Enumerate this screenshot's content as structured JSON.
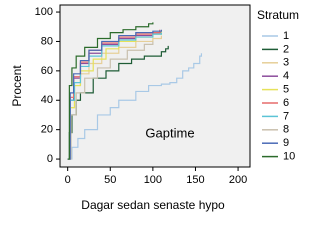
{
  "chart_data": {
    "type": "line",
    "step": "post",
    "xlabel": "Dagar sedan senaste hypo",
    "ylabel": "Procent",
    "annotation": "Gaptime",
    "legend_title": "Stratum",
    "legend": "right",
    "xlim": [
      -9,
      214
    ],
    "ylim": [
      -5.4,
      104.8
    ],
    "xticks": [
      0,
      50,
      100,
      150,
      200
    ],
    "yticks": [
      0,
      20,
      40,
      60,
      80,
      100
    ],
    "series": [
      {
        "name": "1",
        "color": "#a9c9e6",
        "x": [
          0,
          5,
          12,
          20,
          35,
          50,
          60,
          80,
          95,
          110,
          120,
          128,
          135,
          142,
          148,
          155,
          157
        ],
        "values": [
          0,
          8,
          14,
          20,
          30,
          35,
          40,
          46,
          50,
          51,
          52,
          55,
          60,
          62,
          65,
          70,
          72
        ]
      },
      {
        "name": "2",
        "color": "#1e5c36",
        "x": [
          0,
          2,
          5,
          10,
          15,
          30,
          45,
          60,
          75,
          90,
          110,
          115,
          118
        ],
        "values": [
          0,
          18,
          30,
          40,
          45,
          55,
          60,
          65,
          68,
          70,
          73,
          75,
          77
        ]
      },
      {
        "name": "3",
        "color": "#e6cf98",
        "x": [
          0,
          3,
          8,
          15,
          25,
          40,
          60,
          80,
          100,
          110
        ],
        "values": [
          0,
          35,
          50,
          58,
          65,
          72,
          76,
          80,
          82,
          84
        ]
      },
      {
        "name": "4",
        "color": "#8c4d9c",
        "x": [
          0,
          3,
          7,
          15,
          25,
          40,
          60,
          80,
          100,
          110
        ],
        "values": [
          0,
          40,
          55,
          65,
          72,
          78,
          82,
          84,
          86,
          87
        ]
      },
      {
        "name": "5",
        "color": "#e6e25a",
        "x": [
          0,
          3,
          8,
          15,
          30,
          45,
          60,
          80,
          100,
          110
        ],
        "values": [
          0,
          35,
          50,
          60,
          68,
          75,
          80,
          83,
          85,
          87
        ]
      },
      {
        "name": "6",
        "color": "#e66a6a",
        "x": [
          0,
          3,
          7,
          15,
          25,
          40,
          60,
          80,
          100,
          108
        ],
        "values": [
          0,
          42,
          56,
          66,
          74,
          79,
          83,
          85,
          86,
          88
        ]
      },
      {
        "name": "7",
        "color": "#5bc4d6",
        "x": [
          0,
          3,
          8,
          15,
          25,
          40,
          60,
          80,
          100,
          110
        ],
        "values": [
          0,
          40,
          52,
          63,
          70,
          77,
          81,
          83,
          85,
          86
        ]
      },
      {
        "name": "8",
        "color": "#c9c0ae",
        "x": [
          0,
          4,
          10,
          20,
          35,
          50,
          70,
          90,
          100
        ],
        "values": [
          0,
          30,
          45,
          55,
          62,
          68,
          74,
          78,
          80
        ]
      },
      {
        "name": "9",
        "color": "#4a6ab6",
        "x": [
          0,
          3,
          7,
          15,
          25,
          40,
          60,
          80,
          100,
          110
        ],
        "values": [
          0,
          45,
          58,
          67,
          74,
          80,
          84,
          86,
          87,
          88
        ]
      },
      {
        "name": "10",
        "color": "#2b6b2b",
        "x": [
          0,
          2,
          5,
          10,
          20,
          35,
          50,
          65,
          80,
          95,
          100
        ],
        "values": [
          0,
          50,
          62,
          70,
          76,
          82,
          86,
          88,
          90,
          92,
          93
        ]
      }
    ]
  }
}
